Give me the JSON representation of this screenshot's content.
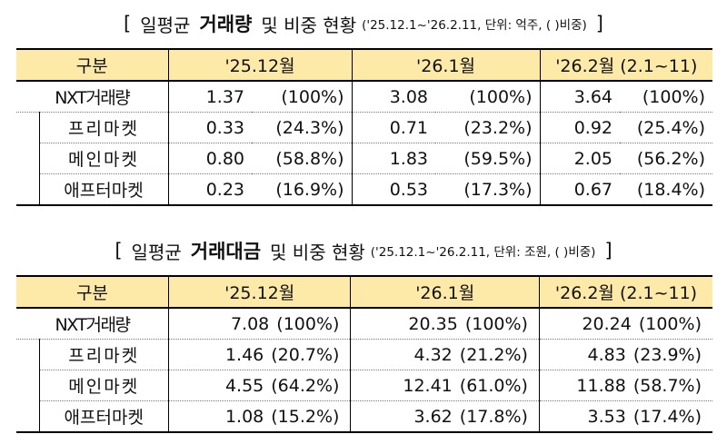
{
  "volume": {
    "title_pre": "일평균",
    "title_bold": "거래량",
    "title_post": "및 비중 현황",
    "note": "('25.12.1~'26.2.11, 단위: 억주, ( )비중)",
    "bracket_open": "[",
    "bracket_close": "]",
    "header": [
      "구분",
      "'25.12월",
      "'26.1월",
      "'26.2월  (2.1~11)"
    ],
    "rows": [
      {
        "label": "NXT거래량",
        "v1": "1.37",
        "p1": "(100%)",
        "v2": "3.08",
        "p2": "(100%)",
        "v3": "3.64",
        "p3": "(100%)"
      },
      {
        "label": "프리마켓",
        "v1": "0.33",
        "p1": "(24.3%)",
        "v2": "0.71",
        "p2": "(23.2%)",
        "v3": "0.92",
        "p3": "(25.4%)"
      },
      {
        "label": "메인마켓",
        "v1": "0.80",
        "p1": "(58.8%)",
        "v2": "1.83",
        "p2": "(59.5%)",
        "v3": "2.05",
        "p3": "(56.2%)"
      },
      {
        "label": "애프터마켓",
        "v1": "0.23",
        "p1": "(16.9%)",
        "v2": "0.53",
        "p2": "(17.3%)",
        "v3": "0.67",
        "p3": "(18.4%)"
      }
    ]
  },
  "value": {
    "title_pre": "일평균",
    "title_bold": "거래대금",
    "title_post": "및 비중 현황",
    "note": "('25.12.1~'26.2.11, 단위: 조원, ( )비중)",
    "bracket_open": "[",
    "bracket_close": "]",
    "header": [
      "구분",
      "'25.12월",
      "'26.1월",
      "'26.2월  (2.1~11)"
    ],
    "rows": [
      {
        "label": "NXT거래량",
        "v1": "7.08",
        "p1": "(100%)",
        "v2": "20.35",
        "p2": "(100%)",
        "v3": "20.24",
        "p3": "(100%)"
      },
      {
        "label": "프리마켓",
        "v1": "1.46",
        "p1": "(20.7%)",
        "v2": "4.32",
        "p2": "(21.2%)",
        "v3": "4.83",
        "p3": "(23.9%)"
      },
      {
        "label": "메인마켓",
        "v1": "4.55",
        "p1": "(64.2%)",
        "v2": "12.41",
        "p2": "(61.0%)",
        "v3": "11.88",
        "p3": "(58.7%)"
      },
      {
        "label": "애프터마켓",
        "v1": "1.08",
        "p1": "(15.2%)",
        "v2": "3.62",
        "p2": "(17.8%)",
        "v3": "3.53",
        "p3": "(17.4%)"
      }
    ]
  }
}
